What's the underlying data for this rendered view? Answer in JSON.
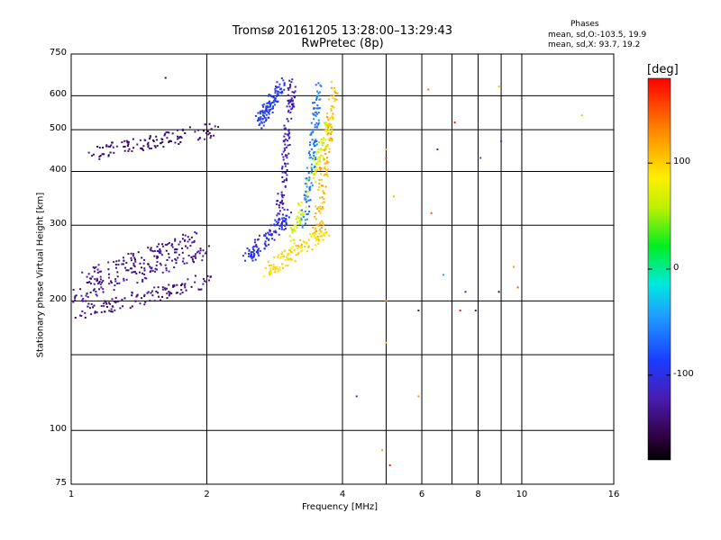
{
  "header": {
    "title": "Tromsø 20161205 13:28:00–13:29:43",
    "subtitle": "RwPretec (8p)"
  },
  "phase_info": {
    "heading": "Phases",
    "line_o": "mean, sd,O:-103.5, 19.9",
    "line_x": "mean, sd,X:  93.7, 19.2"
  },
  "colorbar": {
    "label": "[deg]",
    "ticks": [
      {
        "value": 100,
        "label": "100"
      },
      {
        "value": 0,
        "label": "0"
      },
      {
        "value": -100,
        "label": "-100"
      }
    ],
    "min": -180,
    "max": 180
  },
  "chart_data": {
    "type": "scatter",
    "title": "Tromsø 20161205 13:28:00–13:29:43",
    "subtitle": "RwPretec (8p)",
    "xlabel": "Frequency [MHz]",
    "ylabel": "Stationary phase Virtual Height [km]",
    "x_scale": "log",
    "y_scale": "log",
    "xlim": [
      1,
      16
    ],
    "ylim": [
      75,
      750
    ],
    "x_ticks": [
      {
        "value": 1,
        "label": "1"
      },
      {
        "value": 2,
        "label": "2"
      },
      {
        "value": 4,
        "label": "4"
      },
      {
        "value": 6,
        "label": "6"
      },
      {
        "value": 8,
        "label": "8"
      },
      {
        "value": 10,
        "label": "10"
      },
      {
        "value": 16,
        "label": "16"
      }
    ],
    "x_minor_grid": [
      5,
      7,
      9
    ],
    "y_ticks": [
      {
        "value": 75,
        "label": "75"
      },
      {
        "value": 100,
        "label": "100"
      },
      {
        "value": 200,
        "label": "200"
      },
      {
        "value": 300,
        "label": "300"
      },
      {
        "value": 400,
        "label": "400"
      },
      {
        "value": 500,
        "label": "500"
      },
      {
        "value": 600,
        "label": "600"
      },
      {
        "value": 750,
        "label": "750"
      }
    ],
    "y_minor_grid": [
      150
    ],
    "grid": true,
    "color_scale": "phase [deg]",
    "series": [
      {
        "name": "O",
        "phase_mean": -103.5,
        "phase_sd": 19.9,
        "clusters": [
          {
            "f_start": 1.02,
            "f_end": 2.05,
            "h_start": 185,
            "h_end": 225,
            "phase": -140
          },
          {
            "f_start": 1.02,
            "f_end": 2.0,
            "h_start": 205,
            "h_end": 260,
            "phase": -130
          },
          {
            "f_start": 1.05,
            "f_end": 1.9,
            "h_start": 225,
            "h_end": 280,
            "phase": -135
          },
          {
            "f_start": 1.1,
            "f_end": 2.1,
            "h_start": 440,
            "h_end": 500,
            "phase": -140
          },
          {
            "f_start": 2.45,
            "f_end": 3.05,
            "h_start": 250,
            "h_end": 320,
            "phase": -100
          },
          {
            "f_start": 2.9,
            "f_end": 3.1,
            "h_start": 320,
            "h_end": 640,
            "phase": -120
          },
          {
            "f_start": 2.6,
            "f_end": 2.95,
            "h_start": 520,
            "h_end": 640,
            "phase": -90
          }
        ]
      },
      {
        "name": "X",
        "phase_mean": 93.7,
        "phase_sd": 19.2,
        "clusters": [
          {
            "f_start": 2.7,
            "f_end": 3.7,
            "h_start": 235,
            "h_end": 290,
            "phase": 95
          },
          {
            "f_start": 3.1,
            "f_end": 3.75,
            "h_start": 280,
            "h_end": 520,
            "phase": 70
          },
          {
            "f_start": 3.5,
            "f_end": 3.85,
            "h_start": 280,
            "h_end": 650,
            "phase": 110
          },
          {
            "f_start": 3.3,
            "f_end": 3.55,
            "h_start": 300,
            "h_end": 640,
            "phase": -60
          }
        ]
      }
    ],
    "scattered_points": [
      {
        "f": 1.62,
        "h": 660,
        "phase": -150
      },
      {
        "f": 4.3,
        "h": 120,
        "phase": -100
      },
      {
        "f": 4.9,
        "h": 90,
        "phase": 120
      },
      {
        "f": 5.0,
        "h": 450,
        "phase": 120
      },
      {
        "f": 5.0,
        "h": 430,
        "phase": 170
      },
      {
        "f": 5.0,
        "h": 200,
        "phase": 120
      },
      {
        "f": 5.0,
        "h": 160,
        "phase": 100
      },
      {
        "f": 5.1,
        "h": 83,
        "phase": 170
      },
      {
        "f": 5.2,
        "h": 350,
        "phase": 110
      },
      {
        "f": 5.9,
        "h": 190,
        "phase": -130
      },
      {
        "f": 5.9,
        "h": 120,
        "phase": 130
      },
      {
        "f": 6.2,
        "h": 620,
        "phase": 140
      },
      {
        "f": 6.3,
        "h": 320,
        "phase": 150
      },
      {
        "f": 6.5,
        "h": 450,
        "phase": -110
      },
      {
        "f": 6.7,
        "h": 230,
        "phase": -40
      },
      {
        "f": 7.1,
        "h": 520,
        "phase": 170
      },
      {
        "f": 7.3,
        "h": 190,
        "phase": 170
      },
      {
        "f": 7.5,
        "h": 210,
        "phase": -110
      },
      {
        "f": 7.9,
        "h": 190,
        "phase": -130
      },
      {
        "f": 8.1,
        "h": 430,
        "phase": -80
      },
      {
        "f": 8.9,
        "h": 630,
        "phase": 110
      },
      {
        "f": 8.9,
        "h": 210,
        "phase": -150
      },
      {
        "f": 9.0,
        "h": 470,
        "phase": -100
      },
      {
        "f": 9.6,
        "h": 240,
        "phase": 130
      },
      {
        "f": 9.8,
        "h": 215,
        "phase": 150
      },
      {
        "f": 13.6,
        "h": 540,
        "phase": 110
      }
    ]
  }
}
